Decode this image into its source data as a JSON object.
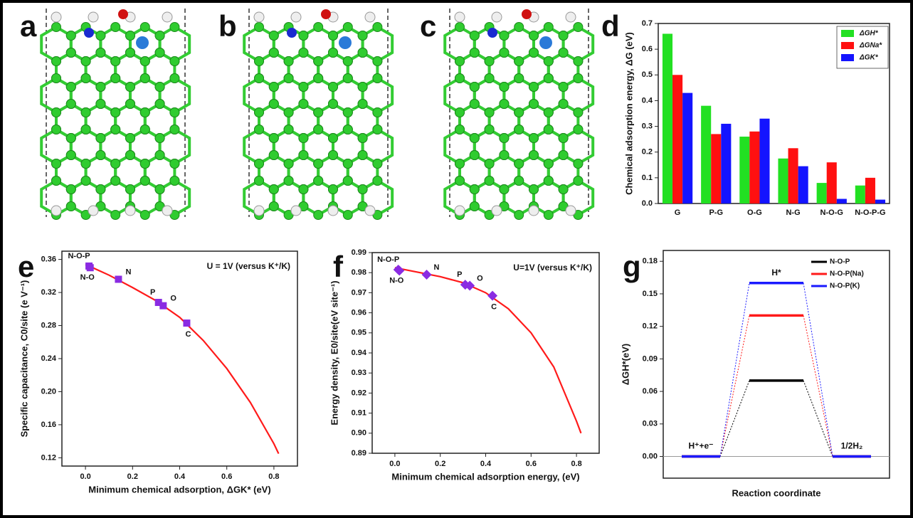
{
  "structure_panels": [
    "a",
    "b",
    "c"
  ],
  "chart_data": [
    {
      "panel": "d",
      "type": "bar",
      "ylabel": "Chemical adsorption energy, ΔG (eV)",
      "categories": [
        "G",
        "P-G",
        "O-G",
        "N-G",
        "N-O-G",
        "N-O-P-G"
      ],
      "series": [
        {
          "name": "ΔGH*",
          "color": "#22e022",
          "values": [
            0.66,
            0.38,
            0.26,
            0.175,
            0.08,
            0.07
          ]
        },
        {
          "name": "ΔGNa*",
          "color": "#ff1010",
          "values": [
            0.5,
            0.27,
            0.28,
            0.215,
            0.16,
            0.1
          ]
        },
        {
          "name": "ΔGK*",
          "color": "#1414ff",
          "values": [
            0.43,
            0.31,
            0.33,
            0.145,
            0.018,
            0.015
          ]
        }
      ],
      "ylim": [
        0,
        0.7
      ],
      "yticks": [
        {
          "value": 0,
          "label": "0.0"
        },
        0.1,
        0.2,
        0.3,
        0.4,
        0.5,
        0.6,
        0.7
      ],
      "legend": "upper right"
    },
    {
      "panel": "e",
      "type": "scatter",
      "marker": "square",
      "color": "#8a2be2",
      "annotation": "U = 1V (versus K⁺/K)",
      "xlabel": "Minimum chemical adsorption, ΔGK* (eV)",
      "ylabel": "Specific capacitance, C0/site (e V⁻¹)",
      "point_labels": [
        "N-O-P",
        "N-O",
        "N",
        "P",
        "O",
        "C"
      ],
      "x": [
        0.015,
        0.02,
        0.14,
        0.31,
        0.33,
        0.43
      ],
      "values": [
        0.352,
        0.35,
        0.336,
        0.308,
        0.304,
        0.283
      ],
      "fit": {
        "color": "#ff1a1a",
        "x": [
          0,
          0.1,
          0.2,
          0.3,
          0.4,
          0.5,
          0.6,
          0.7,
          0.8,
          0.82
        ],
        "values": [
          0.354,
          0.341,
          0.326,
          0.31,
          0.29,
          0.262,
          0.228,
          0.187,
          0.137,
          0.125
        ]
      },
      "xlim": [
        -0.1,
        0.9
      ],
      "xticks": [
        {
          "value": 0,
          "label": "0.0"
        },
        0.2,
        0.4,
        0.6,
        0.8
      ],
      "ylim": [
        0.11,
        0.37
      ],
      "yticks": [
        0.12,
        0.16,
        {
          "value": 0.2,
          "label": "0.20"
        },
        0.24,
        0.28,
        0.32,
        0.36
      ]
    },
    {
      "panel": "f",
      "type": "scatter",
      "marker": "diamond",
      "color": "#8a2be2",
      "annotation": "U=1V (versus K⁺/K)",
      "xlabel": "Minimum chemical adsorption energy, (eV)",
      "ylabel": "Energy density, E0/site(eV site⁻¹)",
      "point_labels": [
        "N-O-P",
        "N-O",
        "N",
        "P",
        "O",
        "C"
      ],
      "x": [
        0.015,
        0.02,
        0.14,
        0.31,
        0.33,
        0.43
      ],
      "values": [
        0.9815,
        0.981,
        0.979,
        0.974,
        0.9735,
        0.9685
      ],
      "fit": {
        "color": "#ff1a1a",
        "x": [
          0,
          0.2,
          0.3,
          0.4,
          0.5,
          0.6,
          0.7,
          0.8,
          0.82
        ],
        "values": [
          0.9825,
          0.978,
          0.975,
          0.97,
          0.962,
          0.95,
          0.933,
          0.906,
          0.9
        ]
      },
      "xlim": [
        -0.1,
        0.9
      ],
      "xticks": [
        {
          "value": 0,
          "label": "0.0"
        },
        0.2,
        0.4,
        0.6,
        0.8
      ],
      "ylim": [
        0.89,
        0.99
      ],
      "yticks": [
        0.89,
        {
          "value": 0.9,
          "label": "0.90"
        },
        0.91,
        0.92,
        0.93,
        0.94,
        0.95,
        0.96,
        0.97,
        0.98,
        0.99
      ]
    },
    {
      "panel": "g",
      "type": "line",
      "xlabel": "Reaction coordinate",
      "ylabel": "ΔGH*(eV)",
      "categories": [
        "H⁺+e⁻",
        "H*",
        "1/2H₂"
      ],
      "series": [
        {
          "name": "N-O-P",
          "color": "#000000",
          "values": [
            0,
            0.07,
            0
          ]
        },
        {
          "name": "N-O-P(Na)",
          "color": "#ff1a1a",
          "values": [
            0,
            0.13,
            0
          ]
        },
        {
          "name": "N-O-P(K)",
          "color": "#1a1aff",
          "values": [
            0,
            0.16,
            0
          ]
        }
      ],
      "ylim": [
        -0.02,
        0.19
      ],
      "yticks": [
        {
          "value": 0,
          "label": "0.00"
        },
        0.03,
        0.06,
        0.09,
        0.12,
        0.15,
        0.18
      ],
      "zero_line": true,
      "legend": "upper right"
    }
  ]
}
